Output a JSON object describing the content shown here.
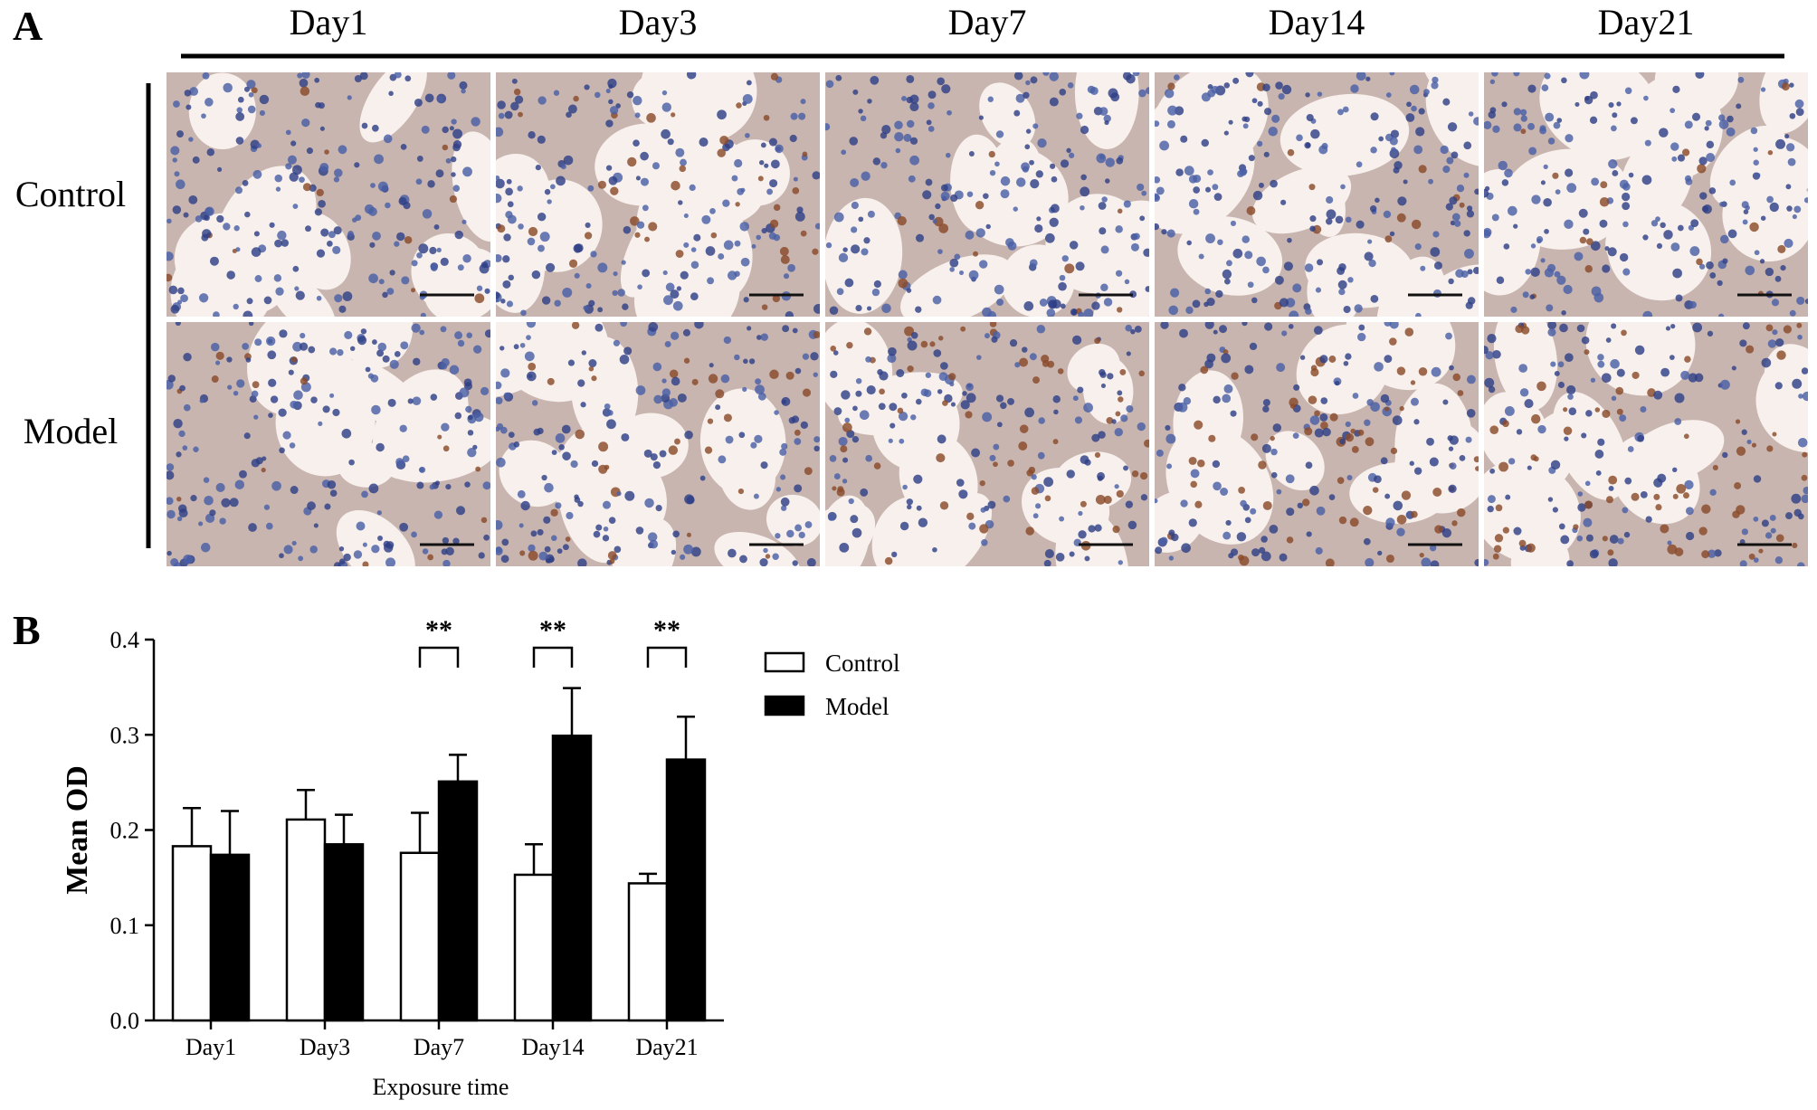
{
  "figure": {
    "panel_a_letter": "A",
    "panel_b_letter": "B",
    "columns": [
      "Day1",
      "Day3",
      "Day7",
      "Day14",
      "Day21"
    ],
    "rows": [
      "Control",
      "Model"
    ],
    "stain_colors": {
      "background": "#f7f0ec",
      "nuclei": "#4a5fa6",
      "nuclei_dark": "#2f3f86",
      "tissue": "#c9b5b0",
      "brown_stain": "#8a4a2a"
    }
  },
  "chart_data": {
    "type": "bar",
    "title": "",
    "xlabel": "Exposure time",
    "ylabel": "Mean OD",
    "ylim": [
      0,
      0.4
    ],
    "yticks": [
      "0.0",
      "0.1",
      "0.2",
      "0.3",
      "0.4"
    ],
    "categories": [
      "Day1",
      "Day3",
      "Day7",
      "Day14",
      "Day21"
    ],
    "series": [
      {
        "name": "Control",
        "color": "#ffffff",
        "values": [
          0.183,
          0.211,
          0.176,
          0.153,
          0.144
        ],
        "errors": [
          0.04,
          0.031,
          0.042,
          0.032,
          0.01
        ]
      },
      {
        "name": "Model",
        "color": "#000000",
        "values": [
          0.174,
          0.185,
          0.251,
          0.299,
          0.274
        ],
        "errors": [
          0.046,
          0.031,
          0.028,
          0.05,
          0.045
        ]
      }
    ],
    "significance": [
      {
        "category": "Day7",
        "label": "**"
      },
      {
        "category": "Day14",
        "label": "**"
      },
      {
        "category": "Day21",
        "label": "**"
      }
    ],
    "legend_position": "right"
  }
}
